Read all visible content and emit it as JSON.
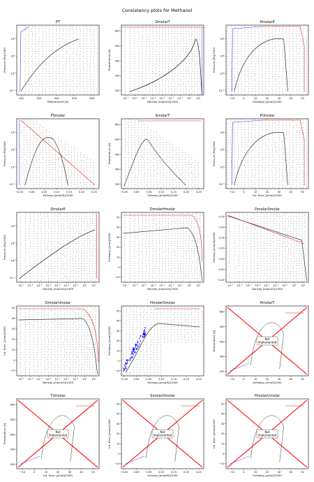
{
  "figure_title": "Consistency plots for Methanol",
  "colors": {
    "grid_points": "#000000",
    "saturation": "#333333",
    "left_boundary": "#3a3aff",
    "right_boundary": "#e02020",
    "cross": "#ff0000",
    "blue_points": "#0000ff"
  },
  "not_implemented_label": [
    "Not",
    "Implemented"
  ],
  "chart_data": [
    {
      "type": "scatter",
      "title": "PT",
      "xlabel": "Temperature [K]",
      "ylabel": "Pressure [Pa]/1000",
      "xticks": [
        "200",
        "300",
        "400",
        "500",
        "600"
      ],
      "yticks": [
        "10⁻²",
        "10⁰",
        "10²",
        "10⁴"
      ],
      "yscale": "log",
      "xlim": [
        175,
        640
      ],
      "ylim": [
        -2.5,
        5.6
      ],
      "style": "pt"
    },
    {
      "type": "scatter",
      "title": "DmolarT",
      "xlabel": "Density [mol/m3]/1000",
      "ylabel": "Temperature [K]",
      "xticks": [
        "10⁻⁷",
        "10⁻⁶",
        "10⁻⁵",
        "10⁻⁴",
        "10⁻³",
        "10⁻²",
        "10⁻¹",
        "10⁰",
        "10¹"
      ],
      "yticks": [
        "200",
        "300",
        "400",
        "500",
        "600"
      ],
      "xscale": "log",
      "xlim": [
        -7.5,
        1.6
      ],
      "ylim": [
        170,
        640
      ],
      "style": "dt"
    },
    {
      "type": "scatter",
      "title": "HmolarP",
      "xlabel": "Enthalpy [J/mol]/1000",
      "ylabel": "Pressure [Pa]/1000",
      "xticks": [
        "−10",
        "0",
        "10",
        "20",
        "30",
        "40",
        "50"
      ],
      "yticks": [
        "10⁻²",
        "10⁰",
        "10²",
        "10⁴"
      ],
      "yscale": "log",
      "xlim": [
        -15,
        55
      ],
      "ylim": [
        -2.5,
        5.6
      ],
      "style": "hp"
    },
    {
      "type": "scatter",
      "title": "PSmolar",
      "xlabel": "Entropy [J/mol/K]/1000",
      "ylabel": "Pressure [Pa]/1000",
      "xticks": [
        "−0.05",
        "0.00",
        "0.05",
        "0.10",
        "0.15",
        "0.20",
        "0.25"
      ],
      "yticks": [
        "10⁻²",
        "10⁰",
        "10²",
        "10⁴"
      ],
      "yscale": "log",
      "xlim": [
        -0.06,
        0.27
      ],
      "ylim": [
        -2.5,
        5.6
      ],
      "style": "ps"
    },
    {
      "type": "scatter",
      "title": "SmolarT",
      "xlabel": "Entropy [J/mol/K]/1000",
      "ylabel": "Temperature [K]",
      "xticks": [
        "−0.05",
        "0.00",
        "0.05",
        "0.10",
        "0.15",
        "0.20",
        "0.25"
      ],
      "yticks": [
        "200",
        "300",
        "400",
        "500",
        "600"
      ],
      "xlim": [
        -0.06,
        0.27
      ],
      "ylim": [
        170,
        640
      ],
      "style": "st"
    },
    {
      "type": "scatter",
      "title": "PUmolar",
      "xlabel": "Int. Ener. [J/mol]/1000",
      "ylabel": "Pressure [Pa]/1000",
      "xticks": [
        "−10",
        "0",
        "10",
        "20",
        "30",
        "40",
        "50"
      ],
      "yticks": [
        "10⁻²",
        "10⁰",
        "10²",
        "10⁴"
      ],
      "yscale": "log",
      "xlim": [
        -15,
        55
      ],
      "ylim": [
        -2.5,
        5.6
      ],
      "style": "pu"
    },
    {
      "type": "scatter",
      "title": "DmolarP",
      "xlabel": "Density [mol/m3]/1000",
      "ylabel": "Pressure [Pa]/1000",
      "xticks": [
        "10⁻⁷",
        "10⁻⁶",
        "10⁻⁵",
        "10⁻⁴",
        "10⁻³",
        "10⁻²",
        "10⁻¹",
        "10⁰",
        "10¹"
      ],
      "yticks": [
        "10⁻²",
        "10⁰",
        "10²",
        "10⁴"
      ],
      "xscale": "log",
      "yscale": "log",
      "xlim": [
        -7.5,
        1.6
      ],
      "ylim": [
        -2.5,
        5.6
      ],
      "style": "dp"
    },
    {
      "type": "scatter",
      "title": "DmolarHmolar",
      "xlabel": "Density [mol/m3]/1000",
      "ylabel": "Enthalpy [J/mol]/1000",
      "xticks": [
        "10⁻⁷",
        "10⁻⁶",
        "10⁻⁵",
        "10⁻⁴",
        "10⁻³",
        "10⁻²",
        "10⁻¹",
        "10⁰",
        "10¹"
      ],
      "yticks": [
        "−10",
        "0",
        "10",
        "20",
        "30",
        "40",
        "50"
      ],
      "xscale": "log",
      "xlim": [
        -7.5,
        1.6
      ],
      "ylim": [
        -15,
        55
      ],
      "style": "dh"
    },
    {
      "type": "scatter",
      "title": "DmolarSmolar",
      "xlabel": "Density [mol/m3]/1000",
      "ylabel": "Entropy [J/mol/K]/1000",
      "xticks": [
        "10⁻⁷",
        "10⁻⁶",
        "10⁻⁵",
        "10⁻⁴",
        "10⁻³",
        "10⁻²",
        "10⁻¹",
        "10⁰",
        "10¹"
      ],
      "yticks": [
        "−0.05",
        "0.00",
        "0.05",
        "0.10",
        "0.15",
        "0.20",
        "0.25"
      ],
      "xscale": "log",
      "xlim": [
        -7.5,
        1.6
      ],
      "ylim": [
        -0.06,
        0.27
      ],
      "style": "ds"
    },
    {
      "type": "scatter",
      "title": "DmolarUmolar",
      "xlabel": "Density [mol/m3]/1000",
      "ylabel": "Int. Ener. [J/mol]/1000",
      "xticks": [
        "10⁻⁷",
        "10⁻⁶",
        "10⁻⁵",
        "10⁻⁴",
        "10⁻³",
        "10⁻²",
        "10⁻¹",
        "10⁰",
        "10¹"
      ],
      "yticks": [
        "−10",
        "0",
        "10",
        "20",
        "30",
        "40",
        "50"
      ],
      "xscale": "log",
      "xlim": [
        -7.5,
        1.6
      ],
      "ylim": [
        -15,
        52
      ],
      "style": "du"
    },
    {
      "type": "scatter",
      "title": "HmolarSmolar",
      "xlabel": "Entropy [J/mol/K]/1000",
      "ylabel": "Enthalpy [J/mol]/1000",
      "xticks": [
        "−0.05",
        "0.00",
        "0.05",
        "0.10",
        "0.15",
        "0.20",
        "0.25"
      ],
      "yticks": [
        "−10",
        "0",
        "10",
        "20",
        "30",
        "40",
        "50"
      ],
      "xlim": [
        -0.06,
        0.27
      ],
      "ylim": [
        -15,
        55
      ],
      "style": "hs"
    },
    {
      "type": "line",
      "title": "HmolarT",
      "xlabel": "Enthalpy [J/mol]/1000",
      "ylabel": "Temperature [K]",
      "xticks": [
        "−10",
        "0",
        "10",
        "20",
        "30",
        "40",
        "50"
      ],
      "yticks": [
        "200",
        "300",
        "400",
        "500",
        "600"
      ],
      "xlim": [
        -15,
        55
      ],
      "ylim": [
        170,
        640
      ],
      "style": "ni",
      "note": "Not Implemented"
    },
    {
      "type": "line",
      "title": "TUmolar",
      "xlabel": "Int. Ener. [J/mol]/1000",
      "ylabel": "Temperature [K]",
      "xticks": [
        "−10",
        "0",
        "10",
        "20",
        "30",
        "40",
        "50"
      ],
      "yticks": [
        "200",
        "300",
        "400",
        "500",
        "600"
      ],
      "xlim": [
        -15,
        55
      ],
      "ylim": [
        170,
        640
      ],
      "style": "ni",
      "note": "Not Implemented"
    },
    {
      "type": "line",
      "title": "SmolarUmolar",
      "xlabel": "Entropy [J/mol/K]/1000",
      "ylabel": "Int. Ener. [J/mol]/1000",
      "xticks": [
        "−0.05",
        "0.00",
        "0.05",
        "0.10",
        "0.15",
        "0.20",
        "0.25"
      ],
      "yticks": [
        "−10",
        "0",
        "10",
        "20",
        "30",
        "40",
        "50"
      ],
      "xlim": [
        -0.06,
        0.27
      ],
      "ylim": [
        -15,
        55
      ],
      "style": "ni",
      "note": "Not Implemented"
    },
    {
      "type": "line",
      "title": "HmolarUmolar",
      "xlabel": "Enthalpy [J/mol]/1000",
      "ylabel": "Int. Ener. [J/mol]/1000",
      "xticks": [
        "−10",
        "0",
        "10",
        "20",
        "30",
        "40",
        "50"
      ],
      "yticks": [
        "−10",
        "0",
        "10",
        "20",
        "30",
        "40",
        "50"
      ],
      "xlim": [
        -15,
        55
      ],
      "ylim": [
        -15,
        55
      ],
      "style": "ni",
      "note": "Not Implemented"
    }
  ]
}
